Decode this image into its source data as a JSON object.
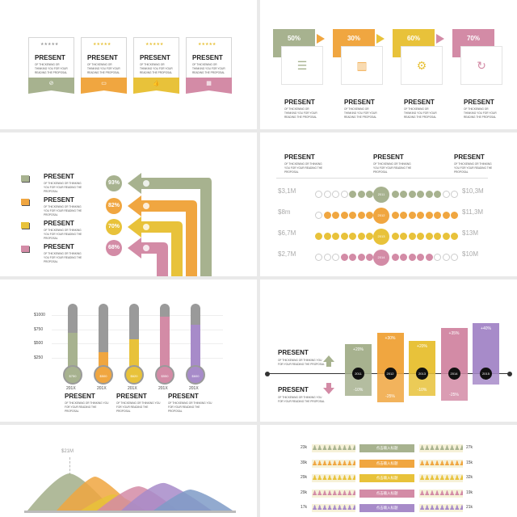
{
  "colors": {
    "green": "#a7b28f",
    "orange": "#f0a640",
    "yellow": "#e8c23a",
    "pink": "#d38ba6",
    "purple": "#a78bc9",
    "grey": "#9a9a9a"
  },
  "common": {
    "title": "PRESENT",
    "body": "OF THICKENING OR THINKING YOU FOR YOUR READING THE PROPOSAL"
  },
  "slide1": {
    "cards": [
      {
        "title": "PRESENT",
        "body": "OF THICKENING OR THINKING YOU FOR YOUR READING THE PROPOSAL",
        "icon": "no-icon"
      },
      {
        "title": "PRESENT",
        "body": "OF THICKENING OR THINKING YOU FOR YOUR READING THE PROPOSAL",
        "icon": "camera-icon"
      },
      {
        "title": "PRESENT",
        "body": "OF THICKENING OR THINKING YOU FOR YOUR READING THE PROPOSAL",
        "icon": "thumb-icon"
      },
      {
        "title": "PRESENT",
        "body": "OF THICKENING OR THINKING YOU FOR YOUR READING THE PROPOSAL",
        "icon": "grid-icon"
      }
    ]
  },
  "slide2": {
    "steps": [
      {
        "pct": "50%",
        "title": "PRESENT",
        "body": "OF THICKENING OR THINKING YOU FOR YOUR READING THE PROPOSAL",
        "icon": "database-icon"
      },
      {
        "pct": "30%",
        "title": "PRESENT",
        "body": "OF THICKENING OR THINKING YOU FOR YOUR READING THE PROPOSAL",
        "icon": "bar-chart-icon"
      },
      {
        "pct": "60%",
        "title": "PRESENT",
        "body": "OF THICKENING OR THINKING YOU FOR YOUR READING THE PROPOSAL",
        "icon": "gear-icon"
      },
      {
        "pct": "70%",
        "title": "PRESENT",
        "body": "OF THICKENING OR THINKING YOU FOR YOUR READING THE PROPOSAL",
        "icon": "refresh-icon"
      }
    ]
  },
  "slide3": {
    "items": [
      {
        "title": "PRESENT",
        "body": "OF THICKENING OR THINKING YOU FOR YOUR READING THE PROPOSAL",
        "pct": "93%"
      },
      {
        "title": "PRESENT",
        "body": "OF THICKENING OR THINKING YOU FOR YOUR READING THE PROPOSAL",
        "pct": "82%"
      },
      {
        "title": "PRESENT",
        "body": "OF THICKENING OR THINKING YOU FOR YOUR READING THE PROPOSAL",
        "pct": "70%"
      },
      {
        "title": "PRESENT",
        "body": "OF THICKENING OR THINKING YOU FOR YOUR READING THE PROPOSAL",
        "pct": "68%"
      }
    ]
  },
  "slide4": {
    "headers": [
      {
        "title": "PRESENT",
        "body": "OF THICKENING OR THINKING YOU FOR YOUR READING THE PROPOSAL"
      },
      {
        "title": "PRESENT",
        "body": "OF THICKENING OR THINKING YOU FOR YOUR READING THE PROPOSAL"
      },
      {
        "title": "PRESENT",
        "body": "OF THICKENING OR THINKING YOU FOR YOUR READING THE PROPOSAL"
      }
    ],
    "rows": [
      {
        "left": "$3,1M",
        "year": "2011",
        "right": "$10,3M",
        "filled": 8
      },
      {
        "left": "$8m",
        "year": "2012",
        "right": "$11,3M",
        "filled": 14
      },
      {
        "left": "$6,7M",
        "year": "2013",
        "right": "$13M",
        "filled": 15
      },
      {
        "left": "$2,7M",
        "year": "2014",
        "right": "$10M",
        "filled": 9
      }
    ]
  },
  "slide5": {
    "yticks": [
      "$1000",
      "$750",
      "$500",
      "$250"
    ],
    "tubes": [
      {
        "label": "201X",
        "value": "$750",
        "fill": 0.55
      },
      {
        "label": "201X",
        "value": "$500",
        "fill": 0.25
      },
      {
        "label": "201X",
        "value": "$620",
        "fill": 0.45
      },
      {
        "label": "201X",
        "value": "$550",
        "fill": 0.8
      },
      {
        "label": "201X",
        "value": "$600",
        "fill": 0.68
      }
    ],
    "texts": [
      {
        "title": "PRESENT",
        "body": "OF THICKENING OR THINKING YOU FOR YOUR READING THE PROPOSAL"
      },
      {
        "title": "PRESENT",
        "body": "OF THICKENING OR THINKING YOU FOR YOUR READING THE PROPOSAL"
      },
      {
        "title": "PRESENT",
        "body": "OF THICKENING OR THINKING YOU FOR YOUR READING THE PROPOSAL"
      }
    ]
  },
  "slide6": {
    "up": {
      "title": "PRESENT",
      "body": "OF THICKENING OR THINKING YOU FOR YOUR READING THE PROPOSAL"
    },
    "down": {
      "title": "PRESENT",
      "body": "OF THICKENING OR THINKING YOU FOR YOUR READING THE PROPOSAL"
    },
    "bars": [
      {
        "year": "2011",
        "up": "+20%",
        "down": "-10%"
      },
      {
        "year": "2012",
        "up": "+30%",
        "down": "-25%"
      },
      {
        "year": "2013",
        "up": "+20%",
        "down": "-10%"
      },
      {
        "year": "2014",
        "up": "+35%",
        "down": "-25%"
      },
      {
        "year": "2015",
        "up": "+40%",
        "down": "-5%"
      }
    ]
  },
  "slide7": {
    "peak_label": "$21M"
  },
  "slide8": {
    "rows": [
      {
        "left": "23k",
        "mid": "点击输入标题",
        "right": "27k"
      },
      {
        "left": "39k",
        "mid": "点击输入标题",
        "right": "15k"
      },
      {
        "left": "29k",
        "mid": "点击输入标题",
        "right": "32k"
      },
      {
        "left": "29k",
        "mid": "点击输入标题",
        "right": "19k"
      },
      {
        "left": "17k",
        "mid": "点击输入标题",
        "right": "21k"
      }
    ]
  }
}
